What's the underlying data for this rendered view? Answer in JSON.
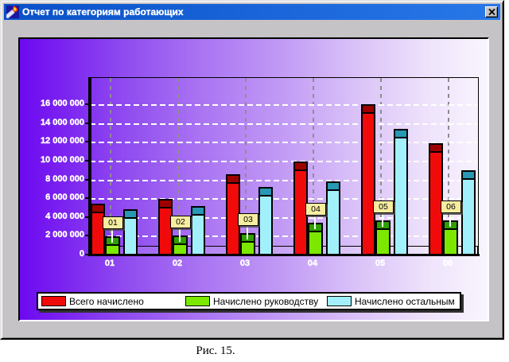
{
  "window": {
    "title": "Отчет по категориям работающих",
    "close_label": "x"
  },
  "caption": "Рис. 15.",
  "chart_data": {
    "type": "bar",
    "categories": [
      "01",
      "02",
      "03",
      "04",
      "05",
      "06"
    ],
    "series": [
      {
        "name": "Всего начислено",
        "color": "#f00a0a",
        "cap_color": "#9e0000",
        "values": [
          5500000,
          6050000,
          8600000,
          10000000,
          16100000,
          11900000
        ]
      },
      {
        "name": "Начислено руководству",
        "color": "#7ce800",
        "cap_color": "#2fa000",
        "values": [
          2000000,
          2100000,
          2350000,
          3450000,
          3700000,
          3750000
        ]
      },
      {
        "name": "Начислено остальным",
        "color": "#a2f0fc",
        "cap_color": "#2898b4",
        "values": [
          4950000,
          5250000,
          7300000,
          7850000,
          13500000,
          9100000
        ]
      }
    ],
    "bar_marks": [
      "01",
      "02",
      "03",
      "04",
      "05",
      "06"
    ],
    "ylim": [
      0,
      18900000
    ],
    "yticks": [
      0,
      2000000,
      4000000,
      6000000,
      8000000,
      10000000,
      12000000,
      14000000,
      16000000
    ],
    "ytick_labels": [
      "0",
      "2 000 000",
      "4 000 000",
      "6 000 000",
      "8 000 000",
      "10 000 000",
      "12 000 000",
      "14 000 000",
      "16 000 000"
    ],
    "legend_position": "bottom",
    "grid": "dashed",
    "background": "purple-gradient"
  }
}
